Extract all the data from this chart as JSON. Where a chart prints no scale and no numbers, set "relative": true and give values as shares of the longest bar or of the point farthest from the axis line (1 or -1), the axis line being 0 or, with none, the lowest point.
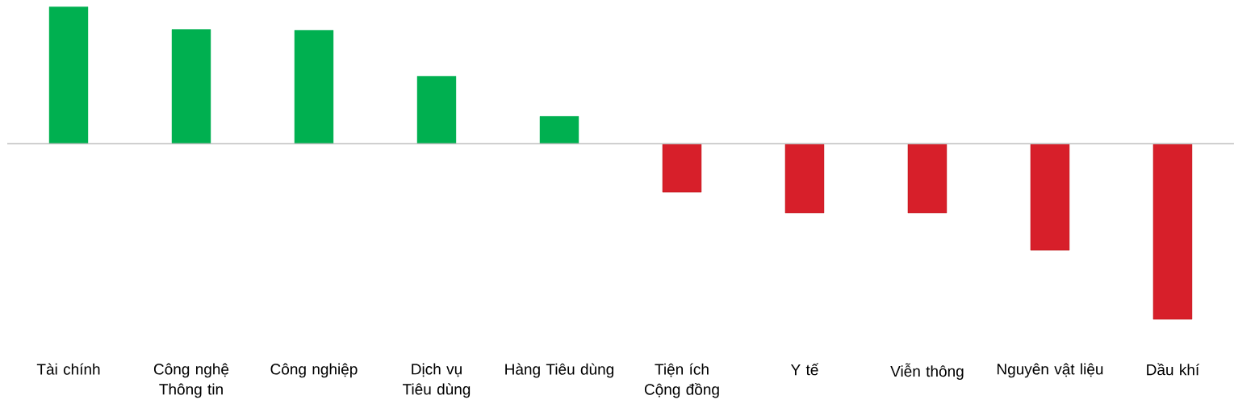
{
  "chart_data": {
    "type": "bar",
    "relative": true,
    "categories": [
      "Tài chính",
      "Công nghệ Thông tin",
      "Công nghiệp",
      "Dịch vụ Tiêu dùng",
      "Hàng Tiêu dùng",
      "Tiện ích Cộng đồng",
      "Y tế",
      "Viễn thông",
      "Nguyên vật liệu",
      "Dầu khí"
    ],
    "values": [
      0.78,
      0.651,
      0.647,
      0.385,
      0.156,
      -0.275,
      -0.394,
      -0.394,
      -0.606,
      -1
    ],
    "colors": [
      "#00b050",
      "#00b050",
      "#00b050",
      "#00b050",
      "#00b050",
      "#d71f2a",
      "#d71f2a",
      "#d71f2a",
      "#d71f2a",
      "#d71f2a"
    ],
    "stacked": false
  }
}
